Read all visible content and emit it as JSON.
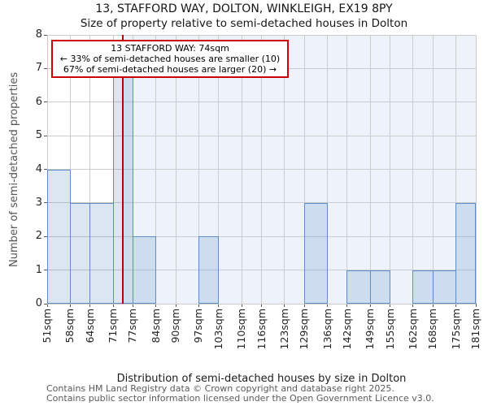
{
  "title": "13, STAFFORD WAY, DOLTON, WINKLEIGH, EX19 8PY",
  "subtitle": "Size of property relative to semi-detached houses in Dolton",
  "annotation": {
    "line1": "13 STAFFORD WAY: 74sqm",
    "line2": "← 33% of semi-detached houses are smaller (10)",
    "line3": "67% of semi-detached houses are larger (20) →"
  },
  "chart_data": {
    "type": "bar",
    "title": "13, STAFFORD WAY, DOLTON, WINKLEIGH, EX19 8PY",
    "subtitle": "Size of property relative to semi-detached houses in Dolton",
    "xlabel": "Distribution of semi-detached houses by size in Dolton",
    "ylabel": "Number of semi-detached properties",
    "bin_edges_sqm": [
      51,
      58,
      64,
      71,
      77,
      84,
      90,
      97,
      103,
      110,
      116,
      123,
      129,
      136,
      142,
      149,
      155,
      162,
      168,
      175,
      181
    ],
    "xtick_labels": [
      "51sqm",
      "58sqm",
      "64sqm",
      "71sqm",
      "77sqm",
      "84sqm",
      "90sqm",
      "97sqm",
      "103sqm",
      "110sqm",
      "116sqm",
      "123sqm",
      "129sqm",
      "136sqm",
      "142sqm",
      "149sqm",
      "155sqm",
      "162sqm",
      "168sqm",
      "175sqm",
      "181sqm"
    ],
    "counts": [
      4,
      3,
      3,
      7,
      2,
      0,
      0,
      2,
      0,
      0,
      0,
      0,
      3,
      0,
      1,
      1,
      0,
      1,
      1,
      3
    ],
    "ylim": [
      0,
      8
    ],
    "yticks": [
      0,
      1,
      2,
      3,
      4,
      5,
      6,
      7,
      8
    ],
    "grid": true,
    "legend": "none",
    "marker_value_sqm": 74,
    "smaller_count": 10,
    "larger_count": 20,
    "colors": {
      "bar_fill": "rgba(95,143,202,0.22)",
      "bar_edge": "#5b8dc9",
      "marker": "#b40000",
      "annotation_border": "#cc0000",
      "shade": "#eef3fb",
      "grid": "#cccccc"
    }
  },
  "footer": [
    "Contains HM Land Registry data © Crown copyright and database right 2025.",
    "Contains public sector information licensed under the Open Government Licence v3.0."
  ]
}
